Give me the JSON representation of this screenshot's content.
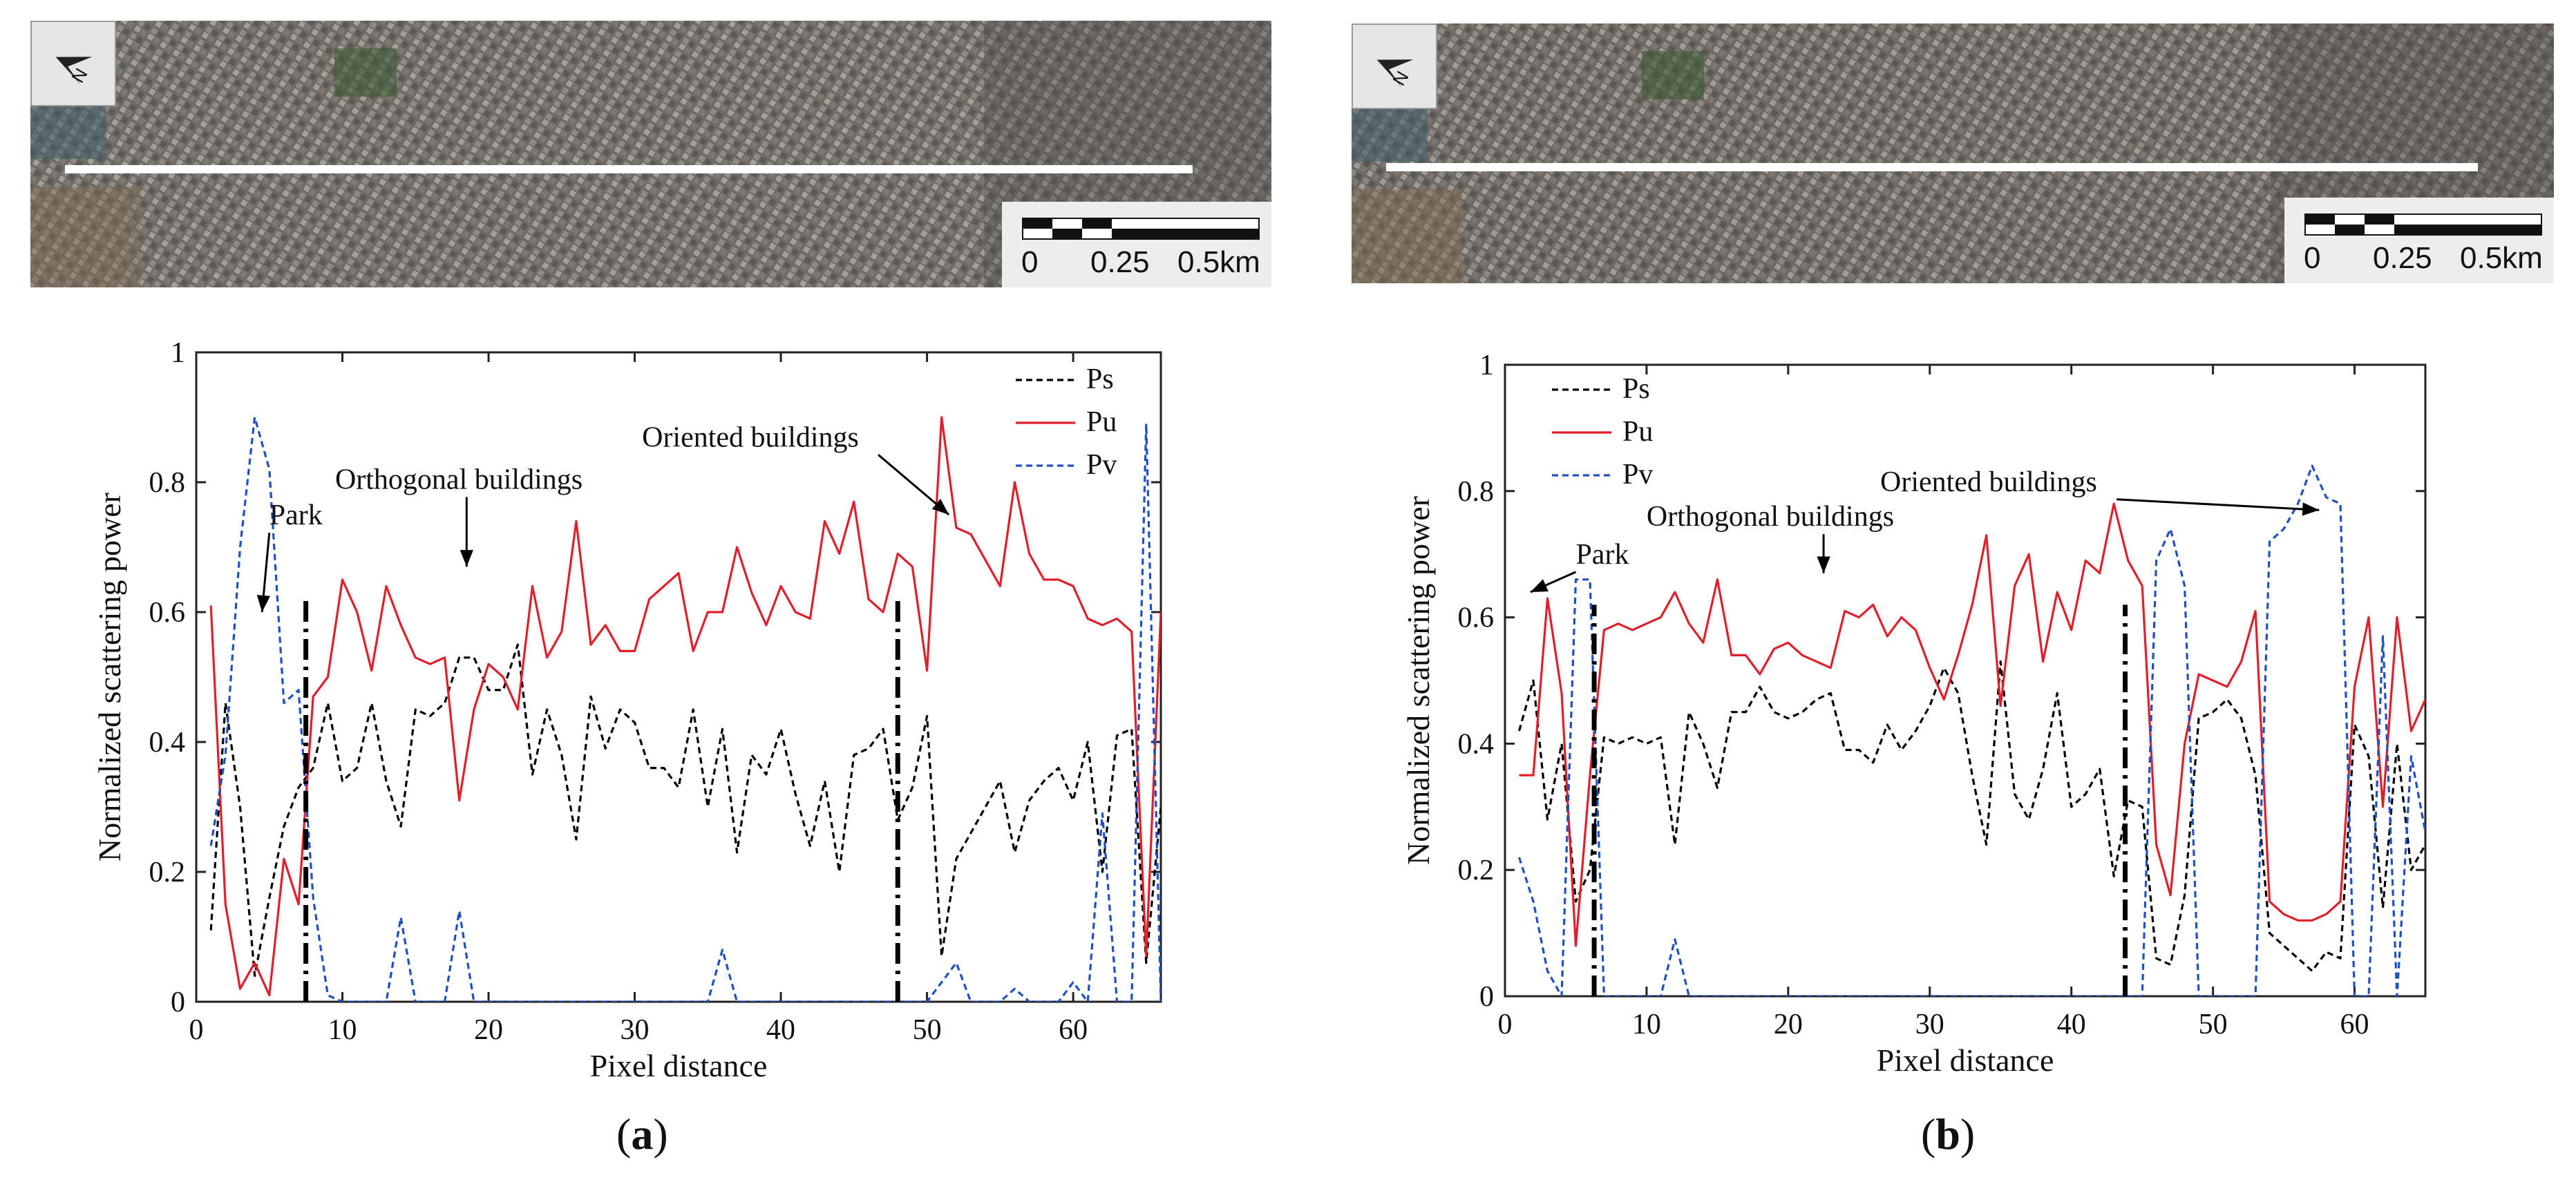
{
  "panels": [
    {
      "label_open": "(",
      "label_letter": "a",
      "label_close": ")",
      "map": {
        "north": "N",
        "scale_0": "0",
        "scale_mid": "0.25",
        "scale_end": "0.5km"
      }
    },
    {
      "label_open": "(",
      "label_letter": "b",
      "label_close": ")",
      "map": {
        "north": "N",
        "scale_0": "0",
        "scale_mid": "0.25",
        "scale_end": "0.5km"
      }
    }
  ],
  "chart_data": [
    {
      "type": "line",
      "xlabel": "Pixel distance",
      "ylabel": "Normalized scattering power",
      "xlim": [
        0,
        66
      ],
      "ylim": [
        0,
        1
      ],
      "xticks": [
        0,
        10,
        20,
        30,
        40,
        50,
        60
      ],
      "yticks": [
        0,
        0.2,
        0.4,
        0.6,
        0.8,
        1
      ],
      "ytick_labels": [
        "0",
        "0.2",
        "0.4",
        "0.6",
        "0.8",
        "1"
      ],
      "legend_position": "top-right",
      "series": [
        {
          "name": "Ps",
          "style": "dashed",
          "color": "#000000",
          "x": [
            1,
            2,
            3,
            4,
            5,
            6,
            7,
            8,
            9,
            10,
            11,
            12,
            13,
            14,
            15,
            16,
            17,
            18,
            19,
            20,
            21,
            22,
            23,
            24,
            25,
            26,
            27,
            28,
            29,
            30,
            31,
            32,
            33,
            34,
            35,
            36,
            37,
            38,
            39,
            40,
            41,
            42,
            43,
            44,
            45,
            46,
            47,
            48,
            49,
            50,
            51,
            52,
            53,
            54,
            55,
            56,
            57,
            58,
            59,
            60,
            61,
            62,
            63,
            64,
            65,
            66
          ],
          "values": [
            0.11,
            0.46,
            0.3,
            0.04,
            0.16,
            0.27,
            0.33,
            0.36,
            0.46,
            0.34,
            0.36,
            0.46,
            0.34,
            0.27,
            0.45,
            0.44,
            0.46,
            0.53,
            0.53,
            0.48,
            0.48,
            0.55,
            0.35,
            0.45,
            0.38,
            0.25,
            0.47,
            0.39,
            0.45,
            0.43,
            0.36,
            0.36,
            0.33,
            0.45,
            0.3,
            0.42,
            0.23,
            0.38,
            0.35,
            0.42,
            0.32,
            0.24,
            0.34,
            0.2,
            0.38,
            0.39,
            0.42,
            0.28,
            0.33,
            0.44,
            0.07,
            0.22,
            0.26,
            0.3,
            0.34,
            0.23,
            0.31,
            0.34,
            0.36,
            0.31,
            0.4,
            0.2,
            0.41,
            0.42,
            0.06,
            0.3
          ]
        },
        {
          "name": "Pu",
          "style": "solid",
          "color": "#e01f2a",
          "x": [
            1,
            2,
            3,
            4,
            5,
            6,
            7,
            8,
            9,
            10,
            11,
            12,
            13,
            14,
            15,
            16,
            17,
            18,
            19,
            20,
            21,
            22,
            23,
            24,
            25,
            26,
            27,
            28,
            29,
            30,
            31,
            32,
            33,
            34,
            35,
            36,
            37,
            38,
            39,
            40,
            41,
            42,
            43,
            44,
            45,
            46,
            47,
            48,
            49,
            50,
            51,
            52,
            53,
            54,
            55,
            56,
            57,
            58,
            59,
            60,
            61,
            62,
            63,
            64,
            65,
            66
          ],
          "values": [
            0.61,
            0.15,
            0.02,
            0.06,
            0.01,
            0.22,
            0.15,
            0.47,
            0.5,
            0.65,
            0.6,
            0.51,
            0.64,
            0.58,
            0.53,
            0.52,
            0.53,
            0.31,
            0.45,
            0.52,
            0.5,
            0.45,
            0.64,
            0.53,
            0.57,
            0.74,
            0.55,
            0.58,
            0.54,
            0.54,
            0.62,
            0.64,
            0.66,
            0.54,
            0.6,
            0.6,
            0.7,
            0.63,
            0.58,
            0.64,
            0.6,
            0.59,
            0.74,
            0.69,
            0.77,
            0.62,
            0.6,
            0.69,
            0.67,
            0.51,
            0.9,
            0.73,
            0.72,
            0.68,
            0.64,
            0.8,
            0.69,
            0.65,
            0.65,
            0.64,
            0.59,
            0.58,
            0.59,
            0.57,
            0.07,
            0.6
          ]
        },
        {
          "name": "Pv",
          "style": "dashed",
          "color": "#1f4fc2",
          "x": [
            1,
            2,
            3,
            4,
            5,
            6,
            7,
            8,
            9,
            10,
            11,
            12,
            13,
            14,
            15,
            16,
            17,
            18,
            19,
            20,
            21,
            22,
            23,
            24,
            25,
            26,
            27,
            28,
            29,
            30,
            31,
            32,
            33,
            34,
            35,
            36,
            37,
            38,
            39,
            40,
            41,
            42,
            43,
            44,
            45,
            46,
            47,
            48,
            49,
            50,
            51,
            52,
            53,
            54,
            55,
            56,
            57,
            58,
            59,
            60,
            61,
            62,
            63,
            64,
            65,
            66
          ],
          "values": [
            0.24,
            0.38,
            0.7,
            0.9,
            0.82,
            0.46,
            0.48,
            0.16,
            0.01,
            0.0,
            0.0,
            0.0,
            0.0,
            0.13,
            0.0,
            0.0,
            0.0,
            0.14,
            0.0,
            0.0,
            0.0,
            0.0,
            0.0,
            0.0,
            0.0,
            0.0,
            0.0,
            0.0,
            0.0,
            0.0,
            0.0,
            0.0,
            0.0,
            0.0,
            0.0,
            0.08,
            0.0,
            0.0,
            0.0,
            0.0,
            0.0,
            0.0,
            0.0,
            0.0,
            0.0,
            0.0,
            0.0,
            0.0,
            0.0,
            0.0,
            0.03,
            0.06,
            0.0,
            0.0,
            0.0,
            0.02,
            0.0,
            0.0,
            0.0,
            0.03,
            0.0,
            0.29,
            0.0,
            0.0,
            0.89,
            0.0
          ]
        }
      ],
      "reference_lines": [
        7.5,
        48
      ],
      "annotations": [
        {
          "text": "Park",
          "x": 5.0,
          "y": 0.735,
          "arrow_to": [
            4.5,
            0.6
          ]
        },
        {
          "text": "Orthogonal buildings",
          "x": 9.5,
          "y": 0.79,
          "arrow_to": [
            18.5,
            0.67
          ]
        },
        {
          "text": "Oriented buildings",
          "x": 30.5,
          "y": 0.855,
          "arrow_to": [
            51.5,
            0.75
          ]
        }
      ]
    },
    {
      "type": "line",
      "xlabel": "Pixel distance",
      "ylabel": "Normalized scattering power",
      "xlim": [
        0,
        65
      ],
      "ylim": [
        0,
        1
      ],
      "xticks": [
        0,
        10,
        20,
        30,
        40,
        50,
        60
      ],
      "yticks": [
        0,
        0.2,
        0.4,
        0.6,
        0.8,
        1
      ],
      "ytick_labels": [
        "0",
        "0.2",
        "0.4",
        "0.6",
        "0.8",
        "1"
      ],
      "legend_position": "top-left",
      "series": [
        {
          "name": "Ps",
          "style": "dashed",
          "color": "#000000",
          "x": [
            1,
            2,
            3,
            4,
            5,
            6,
            7,
            8,
            9,
            10,
            11,
            12,
            13,
            14,
            15,
            16,
            17,
            18,
            19,
            20,
            21,
            22,
            23,
            24,
            25,
            26,
            27,
            28,
            29,
            30,
            31,
            32,
            33,
            34,
            35,
            36,
            37,
            38,
            39,
            40,
            41,
            42,
            43,
            44,
            45,
            46,
            47,
            48,
            49,
            50,
            51,
            52,
            53,
            54,
            55,
            56,
            57,
            58,
            59,
            60,
            61,
            62,
            63,
            64,
            65
          ],
          "values": [
            0.42,
            0.5,
            0.28,
            0.4,
            0.15,
            0.2,
            0.41,
            0.4,
            0.41,
            0.4,
            0.41,
            0.24,
            0.45,
            0.4,
            0.33,
            0.45,
            0.45,
            0.49,
            0.45,
            0.44,
            0.45,
            0.47,
            0.48,
            0.39,
            0.39,
            0.37,
            0.43,
            0.39,
            0.42,
            0.46,
            0.52,
            0.48,
            0.35,
            0.24,
            0.53,
            0.32,
            0.28,
            0.36,
            0.48,
            0.3,
            0.32,
            0.36,
            0.19,
            0.31,
            0.3,
            0.06,
            0.05,
            0.16,
            0.44,
            0.45,
            0.47,
            0.44,
            0.35,
            0.1,
            0.08,
            0.06,
            0.04,
            0.07,
            0.06,
            0.43,
            0.38,
            0.14,
            0.4,
            0.2,
            0.24
          ]
        },
        {
          "name": "Pu",
          "style": "solid",
          "color": "#e01f2a",
          "x": [
            1,
            2,
            3,
            4,
            5,
            6,
            7,
            8,
            9,
            10,
            11,
            12,
            13,
            14,
            15,
            16,
            17,
            18,
            19,
            20,
            21,
            22,
            23,
            24,
            25,
            26,
            27,
            28,
            29,
            30,
            31,
            32,
            33,
            34,
            35,
            36,
            37,
            38,
            39,
            40,
            41,
            42,
            43,
            44,
            45,
            46,
            47,
            48,
            49,
            50,
            51,
            52,
            53,
            54,
            55,
            56,
            57,
            58,
            59,
            60,
            61,
            62,
            63,
            64,
            65
          ],
          "values": [
            0.35,
            0.35,
            0.63,
            0.48,
            0.08,
            0.35,
            0.58,
            0.59,
            0.58,
            0.59,
            0.6,
            0.64,
            0.59,
            0.56,
            0.66,
            0.54,
            0.54,
            0.51,
            0.55,
            0.56,
            0.54,
            0.53,
            0.52,
            0.61,
            0.6,
            0.62,
            0.57,
            0.6,
            0.58,
            0.52,
            0.47,
            0.54,
            0.62,
            0.73,
            0.46,
            0.65,
            0.7,
            0.53,
            0.64,
            0.58,
            0.69,
            0.67,
            0.78,
            0.69,
            0.65,
            0.24,
            0.16,
            0.4,
            0.51,
            0.5,
            0.49,
            0.53,
            0.61,
            0.15,
            0.13,
            0.12,
            0.12,
            0.13,
            0.15,
            0.49,
            0.6,
            0.3,
            0.6,
            0.42,
            0.47
          ]
        },
        {
          "name": "Pv",
          "style": "dashed",
          "color": "#1f4fc2",
          "x": [
            1,
            2,
            3,
            4,
            5,
            6,
            7,
            8,
            9,
            10,
            11,
            12,
            13,
            14,
            15,
            16,
            17,
            18,
            19,
            20,
            21,
            22,
            23,
            24,
            25,
            26,
            27,
            28,
            29,
            30,
            31,
            32,
            33,
            34,
            35,
            36,
            37,
            38,
            39,
            40,
            41,
            42,
            43,
            44,
            45,
            46,
            47,
            48,
            49,
            50,
            51,
            52,
            53,
            54,
            55,
            56,
            57,
            58,
            59,
            60,
            61,
            62,
            63,
            64,
            65
          ],
          "values": [
            0.22,
            0.15,
            0.04,
            0.0,
            0.66,
            0.66,
            0.0,
            0.0,
            0.0,
            0.0,
            0.0,
            0.09,
            0.0,
            0.0,
            0.0,
            0.0,
            0.0,
            0.0,
            0.0,
            0.0,
            0.0,
            0.0,
            0.0,
            0.0,
            0.0,
            0.0,
            0.0,
            0.0,
            0.0,
            0.0,
            0.0,
            0.0,
            0.0,
            0.0,
            0.0,
            0.0,
            0.0,
            0.0,
            0.0,
            0.0,
            0.0,
            0.0,
            0.0,
            0.0,
            0.0,
            0.69,
            0.74,
            0.65,
            0.0,
            0.0,
            0.0,
            0.0,
            0.0,
            0.72,
            0.74,
            0.78,
            0.84,
            0.79,
            0.78,
            0.0,
            0.0,
            0.57,
            0.0,
            0.38,
            0.26
          ]
        }
      ],
      "reference_lines": [
        6.3,
        43.8
      ],
      "annotations": [
        {
          "text": "Park",
          "x": 5.0,
          "y": 0.685,
          "arrow_to": [
            1.8,
            0.64
          ]
        },
        {
          "text": "Orthogonal buildings",
          "x": 10.0,
          "y": 0.745,
          "arrow_to": [
            22.5,
            0.67
          ]
        },
        {
          "text": "Oriented buildings",
          "x": 26.5,
          "y": 0.8,
          "arrow_to": [
            57.5,
            0.77
          ]
        }
      ]
    }
  ]
}
